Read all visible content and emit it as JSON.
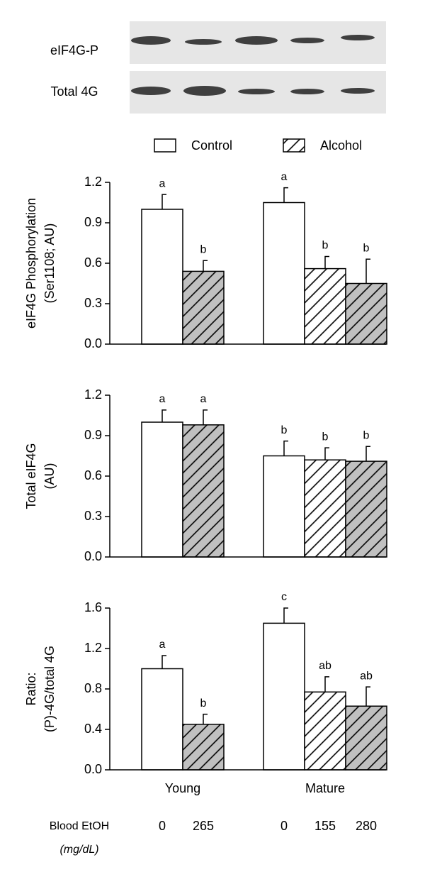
{
  "blot": {
    "labels": [
      "eIF4G-P",
      "Total 4G"
    ]
  },
  "legend": [
    {
      "name": "Control",
      "color": "#ffffff",
      "hatch": false
    },
    {
      "name": "Alcohol",
      "color": "#ffffff",
      "hatch": true
    }
  ],
  "x_axis": {
    "groups": [
      "Young",
      "Mature"
    ],
    "row_label": "Blood EtOH",
    "unit": "(mg/dL)",
    "doses": [
      0,
      265,
      0,
      155,
      280
    ]
  },
  "chart_data": [
    {
      "type": "bar",
      "ylabel": [
        "eIF4G Phosphorylation",
        "(Ser1108; AU)"
      ],
      "values": [
        1.0,
        0.54,
        1.05,
        0.56,
        0.45
      ],
      "errors": [
        0.11,
        0.08,
        0.11,
        0.09,
        0.18
      ],
      "annotations": [
        "a",
        "b",
        "a",
        "b",
        "b"
      ],
      "colors": [
        "#ffffff",
        "#c0c0c0",
        "#ffffff",
        "#ffffff",
        "#c0c0c0"
      ],
      "hatch": [
        false,
        true,
        false,
        true,
        true
      ],
      "ylim": [
        0,
        1.2
      ],
      "yticks": [
        {
          "value": 0,
          "label": "0.0"
        },
        0.3,
        0.6,
        0.9,
        1.2
      ]
    },
    {
      "type": "bar",
      "ylabel": [
        "Total eIF4G",
        "(AU)"
      ],
      "values": [
        1.0,
        0.98,
        0.75,
        0.72,
        0.71
      ],
      "errors": [
        0.09,
        0.11,
        0.11,
        0.09,
        0.11
      ],
      "annotations": [
        "a",
        "a",
        "b",
        "b",
        "b"
      ],
      "colors": [
        "#ffffff",
        "#c0c0c0",
        "#ffffff",
        "#ffffff",
        "#c0c0c0"
      ],
      "hatch": [
        false,
        true,
        false,
        true,
        true
      ],
      "ylim": [
        0,
        1.2
      ],
      "yticks": [
        {
          "value": 0,
          "label": "0.0"
        },
        0.3,
        0.6,
        0.9,
        1.2
      ]
    },
    {
      "type": "bar",
      "ylabel": [
        "Ratio:",
        "(P)-4G/total 4G"
      ],
      "values": [
        1.0,
        0.45,
        1.45,
        0.77,
        0.63
      ],
      "errors": [
        0.13,
        0.1,
        0.15,
        0.15,
        0.19
      ],
      "annotations": [
        "a",
        "b",
        "c",
        "ab",
        "ab"
      ],
      "colors": [
        "#ffffff",
        "#c0c0c0",
        "#ffffff",
        "#ffffff",
        "#c0c0c0"
      ],
      "hatch": [
        false,
        true,
        false,
        true,
        true
      ],
      "ylim": [
        0,
        1.6
      ],
      "yticks": [
        {
          "value": 0,
          "label": "0.0"
        },
        0.4,
        0.8,
        1.2,
        1.6
      ]
    }
  ]
}
